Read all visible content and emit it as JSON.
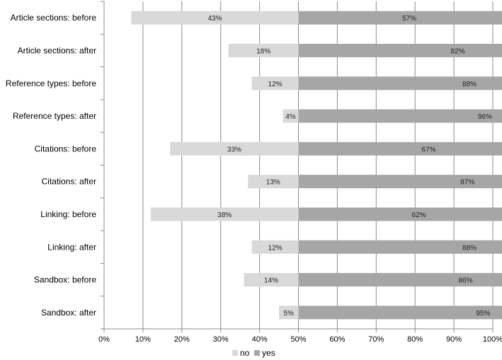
{
  "chart_data": {
    "type": "bar",
    "orientation": "horizontal",
    "stacked": true,
    "categories": [
      "Article sections: before",
      "Article sections: after",
      "Reference types: before",
      "Reference types: after",
      "Citations: before",
      "Citations: after",
      "Linking: before",
      "Linking: after",
      "Sandbox: before",
      "Sandbox: after"
    ],
    "series": [
      {
        "name": "no",
        "color": "#d9d9d9",
        "values": [
          43,
          18,
          12,
          4,
          33,
          13,
          38,
          12,
          14,
          5
        ],
        "labels": [
          "43%",
          "18%",
          "12%",
          "4%",
          "33%",
          "13%",
          "38%",
          "12%",
          "14%",
          "5%"
        ]
      },
      {
        "name": "yes",
        "color": "#a6a6a6",
        "values": [
          57,
          82,
          88,
          96,
          67,
          87,
          62,
          88,
          86,
          95
        ],
        "labels": [
          "57%",
          "82%",
          "88%",
          "96%",
          "67%",
          "87%",
          "62%",
          "88%",
          "86%",
          "95%"
        ]
      }
    ],
    "x_tick_labels": [
      "0%",
      "10%",
      "20%",
      "30%",
      "40%",
      "50%",
      "60%",
      "70%",
      "80%",
      "90%",
      "100%"
    ],
    "xlim": [
      0,
      100
    ],
    "bar_origin": 50,
    "grid": true,
    "legend": "bottom-center"
  }
}
